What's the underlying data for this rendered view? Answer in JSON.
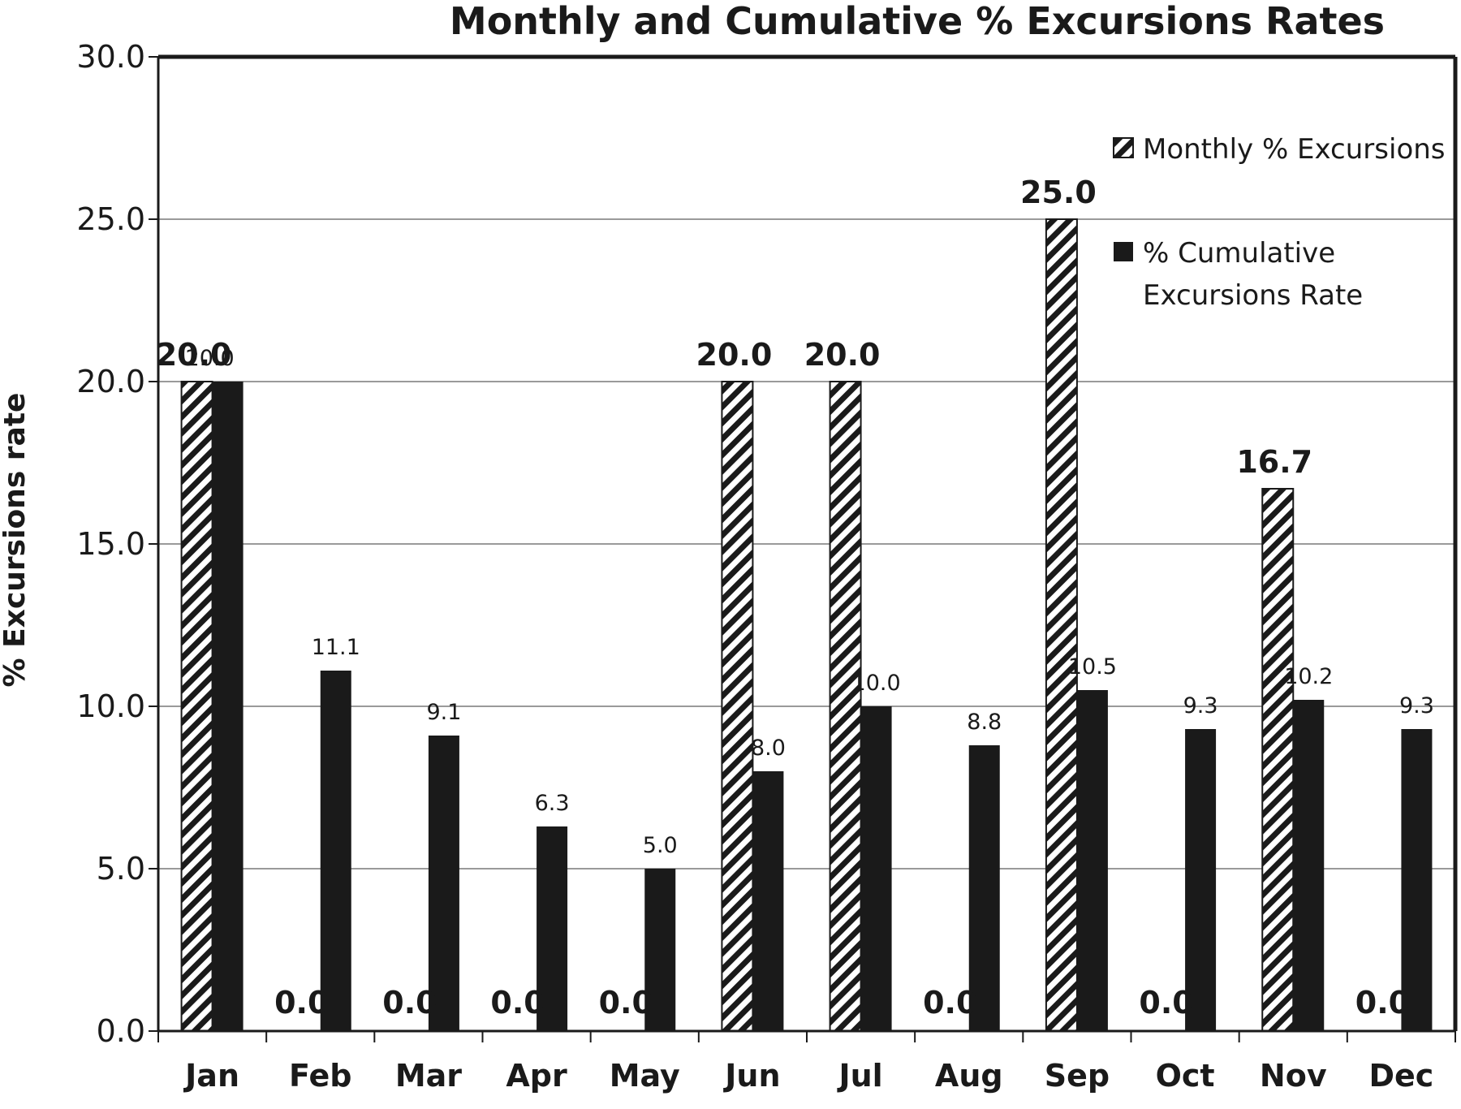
{
  "chart_data": {
    "type": "bar",
    "title": "Monthly and Cumulative % Excursions Rates",
    "xlabel": "",
    "ylabel": "% Excursions  rate",
    "ylim": [
      0,
      30
    ],
    "yticks": [
      "0.0",
      "5.0",
      "10.0",
      "15.0",
      "20.0",
      "25.0",
      "30.0"
    ],
    "grid": true,
    "legend_position": "top-right",
    "categories": [
      "Jan",
      "Feb",
      "Mar",
      "Apr",
      "May",
      "Jun",
      "Jul",
      "Aug",
      "Sep",
      "Oct",
      "Nov",
      "Dec"
    ],
    "series": [
      {
        "name": "Monthly % Excursions",
        "pattern": "diagonal-hatch",
        "values": [
          20.0,
          0.0,
          0.0,
          0.0,
          0.0,
          20.0,
          20.0,
          0.0,
          25.0,
          0.0,
          16.7,
          0.0
        ],
        "labels": [
          "20.0",
          "0.0",
          "0.0",
          "0.0",
          "0.0",
          "20.0",
          "20.0",
          "0.0",
          "25.0",
          "0.0",
          "16.7",
          "0.0"
        ]
      },
      {
        "name": "% Cumulative Excursions Rate",
        "legend_lines": [
          "% Cumulative",
          "Excursions Rate"
        ],
        "color": "#1a1a1a",
        "values": [
          20.0,
          11.1,
          9.1,
          6.3,
          5.0,
          8.0,
          10.0,
          8.8,
          10.5,
          9.3,
          10.2,
          9.3
        ],
        "labels": [
          "20.0",
          "11.1",
          "9.1",
          "6.3",
          "5.0",
          "8.0",
          "10.0",
          "8.8",
          "10.5",
          "9.3",
          "10.2",
          "9.3"
        ]
      }
    ]
  }
}
